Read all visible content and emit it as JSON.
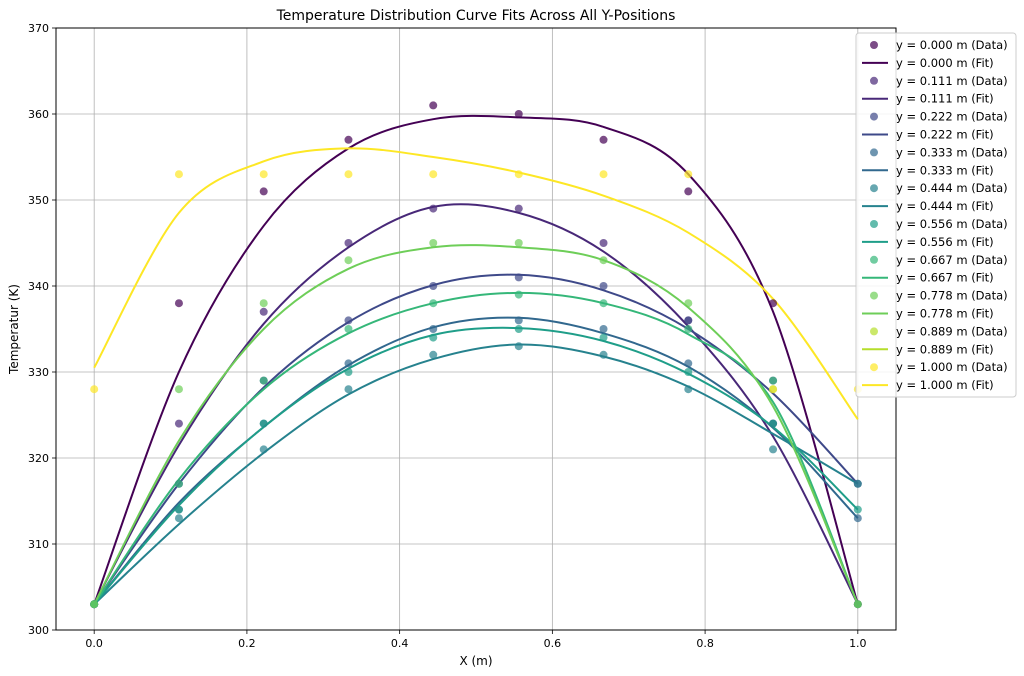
{
  "chart_data": {
    "type": "scatter",
    "title": "Temperature Distribution Curve Fits Across All Y-Positions",
    "xlabel": "X (m)",
    "ylabel": "Temperatur (K)",
    "xlim": [
      -0.05,
      1.05
    ],
    "ylim": [
      300,
      370
    ],
    "xticks": [
      0.0,
      0.2,
      0.4,
      0.6,
      0.8,
      1.0
    ],
    "xtick_labels": [
      "0.0",
      "0.2",
      "0.4",
      "0.6",
      "0.8",
      "1.0"
    ],
    "yticks": [
      300,
      310,
      320,
      330,
      340,
      350,
      360,
      370
    ],
    "ytick_labels": [
      "300",
      "310",
      "320",
      "330",
      "340",
      "350",
      "360",
      "370"
    ],
    "grid": true,
    "legend_position": "top-right",
    "x": [
      0.0,
      0.111,
      0.222,
      0.333,
      0.444,
      0.556,
      0.667,
      0.778,
      0.889,
      1.0
    ],
    "series": [
      {
        "name": "y = 0.000 m",
        "data_label": "y = 0.000 m (Data)",
        "fit_label": "y = 0.000 m (Fit)",
        "color": "#440154",
        "values": [
          303,
          338,
          351,
          357,
          361,
          360,
          357,
          351,
          338,
          303
        ],
        "fit": [
          303,
          330,
          347,
          356,
          359.4,
          359.6,
          358.5,
          353,
          337,
          303
        ]
      },
      {
        "name": "y = 0.111 m",
        "data_label": "y = 0.111 m (Data)",
        "fit_label": "y = 0.111 m (Fit)",
        "color": "#482878",
        "values": [
          303,
          324,
          337,
          345,
          349,
          349,
          345,
          336,
          324,
          303
        ],
        "fit": [
          303,
          321.5,
          335.6,
          344.5,
          349.2,
          348.5,
          344,
          335.3,
          322.5,
          303
        ]
      },
      {
        "name": "y = 0.222 m",
        "data_label": "y = 0.222 m (Data)",
        "fit_label": "y = 0.222 m (Fit)",
        "color": "#3e4989",
        "values": [
          303,
          317,
          329,
          336,
          340,
          341,
          340,
          336,
          329,
          317
        ],
        "fit": [
          303,
          317,
          328.2,
          335.8,
          340.1,
          341.3,
          339.5,
          335,
          327.5,
          317
        ]
      },
      {
        "name": "y = 0.333 m",
        "data_label": "y = 0.333 m (Data)",
        "fit_label": "y = 0.333 m (Fit)",
        "color": "#31688e",
        "values": [
          303,
          314,
          324,
          331,
          335,
          336,
          335,
          331,
          324,
          313
        ],
        "fit": [
          303,
          314.8,
          323.6,
          330.8,
          335.2,
          336.3,
          334.5,
          330.6,
          323.5,
          313
        ]
      },
      {
        "name": "y = 0.444 m",
        "data_label": "y = 0.444 m (Data)",
        "fit_label": "y = 0.444 m (Fit)",
        "color": "#26828e",
        "values": [
          303,
          313,
          321,
          328,
          332,
          333,
          332,
          328,
          321,
          317
        ],
        "fit": [
          303,
          312.3,
          320.6,
          327.4,
          331.5,
          333.2,
          331.8,
          328.3,
          322.8,
          317
        ]
      },
      {
        "name": "y = 0.556 m",
        "data_label": "y = 0.556 m (Data)",
        "fit_label": "y = 0.556 m (Fit)",
        "color": "#1f9e89",
        "values": [
          303,
          314,
          324,
          330,
          334,
          335,
          334,
          330,
          324,
          314
        ],
        "fit": [
          303,
          314.5,
          323.6,
          330.4,
          334.3,
          335.1,
          333.6,
          329.8,
          323.6,
          314
        ]
      },
      {
        "name": "y = 0.667 m",
        "data_label": "y = 0.667 m (Data)",
        "fit_label": "y = 0.667 m (Fit)",
        "color": "#35b779",
        "values": [
          303,
          317,
          329,
          335,
          338,
          339,
          338,
          335,
          329,
          303
        ],
        "fit": [
          303,
          317.5,
          328,
          334.5,
          338,
          339.2,
          338,
          334.4,
          326.5,
          303
        ]
      },
      {
        "name": "y = 0.778 m",
        "data_label": "y = 0.778 m (Data)",
        "fit_label": "y = 0.778 m (Fit)",
        "color": "#6ece58",
        "values": [
          303,
          328,
          338,
          343,
          345,
          345,
          343,
          338,
          328,
          303
        ],
        "fit": [
          303,
          322,
          335,
          342,
          344.5,
          344.5,
          343,
          337.5,
          326,
          303
        ]
      },
      {
        "name": "y = 0.889 m",
        "data_label": "y = 0.889 m (Data)",
        "fit_label": "y = 0.889 m (Fit)",
        "color": "#b5de2b",
        "values": [],
        "fit": []
      },
      {
        "name": "y = 1.000 m",
        "data_label": "y = 1.000 m (Data)",
        "fit_label": "y = 1.000 m (Fit)",
        "color": "#fde725",
        "values": [
          328,
          353,
          353,
          353,
          353,
          353,
          353,
          353,
          328,
          328
        ],
        "fit": [
          330.5,
          348.5,
          354.5,
          356,
          355,
          353.2,
          350.5,
          346.2,
          338.5,
          324.5
        ]
      }
    ]
  }
}
